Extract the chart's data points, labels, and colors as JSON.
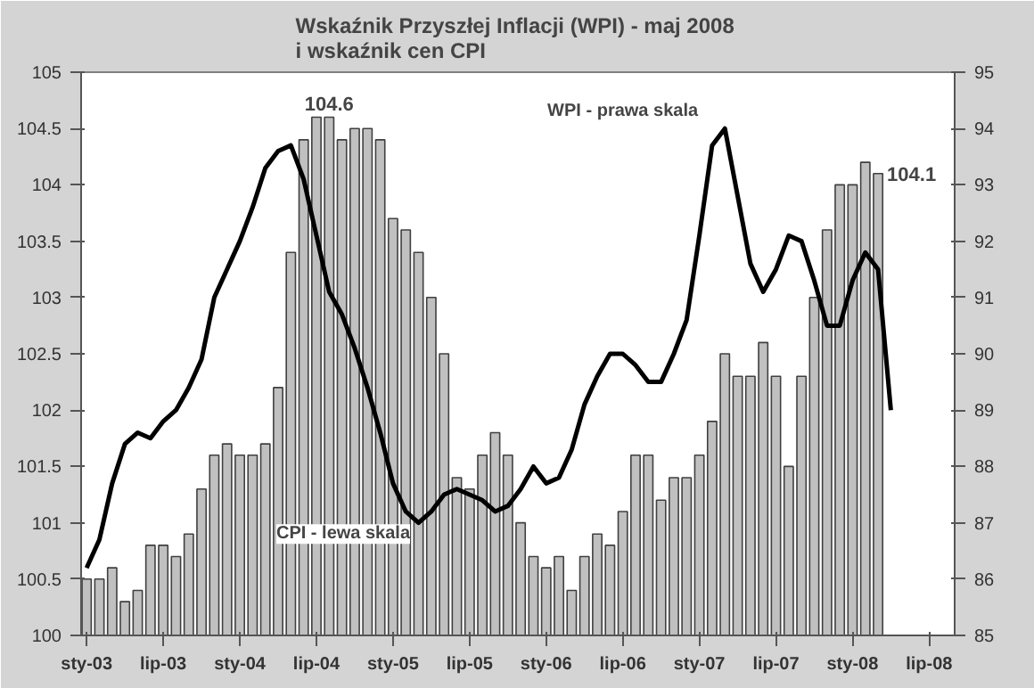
{
  "chart_data": {
    "type": "bar",
    "title": "Wskaźnik Przyszłej Inflacji (WPI) -  maj 2008\ni wskaźnik cen CPI",
    "xlim": [
      "2002-12-18",
      "2008-09-01"
    ],
    "xticks": [
      {
        "value": "2003-01",
        "label": "sty-03"
      },
      {
        "value": "2003-07",
        "label": "lip-03"
      },
      {
        "value": "2004-01",
        "label": "sty-04"
      },
      {
        "value": "2004-07",
        "label": "lip-04"
      },
      {
        "value": "2005-01",
        "label": "sty-05"
      },
      {
        "value": "2005-07",
        "label": "lip-05"
      },
      {
        "value": "2006-01",
        "label": "sty-06"
      },
      {
        "value": "2006-07",
        "label": "lip-06"
      },
      {
        "value": "2007-01",
        "label": "sty-07"
      },
      {
        "value": "2007-07",
        "label": "lip-07"
      },
      {
        "value": "2008-01",
        "label": "sty-08"
      },
      {
        "value": "2008-07",
        "label": "lip-08"
      }
    ],
    "ylim": [
      100,
      105
    ],
    "yticks": [
      100,
      100.5,
      101,
      101.5,
      102,
      102.5,
      103,
      103.5,
      104,
      104.5,
      105
    ],
    "y2lim": [
      85,
      95
    ],
    "y2ticks": [
      85,
      86,
      87,
      88,
      89,
      90,
      91,
      92,
      93,
      94,
      95
    ],
    "grid": false,
    "series": [
      {
        "name": "CPI - lewa skala",
        "color": "#c0c0c0",
        "x": [
          "2003-01",
          "2003-02",
          "2003-03",
          "2003-04",
          "2003-05",
          "2003-06",
          "2003-07",
          "2003-08",
          "2003-09",
          "2003-10",
          "2003-11",
          "2003-12",
          "2004-01",
          "2004-02",
          "2004-03",
          "2004-04",
          "2004-05",
          "2004-06",
          "2004-07",
          "2004-08",
          "2004-09",
          "2004-10",
          "2004-11",
          "2004-12",
          "2005-01",
          "2005-02",
          "2005-03",
          "2005-04",
          "2005-05",
          "2005-06",
          "2005-07",
          "2005-08",
          "2005-09",
          "2005-10",
          "2005-11",
          "2005-12",
          "2006-01",
          "2006-02",
          "2006-03",
          "2006-04",
          "2006-05",
          "2006-06",
          "2006-07",
          "2006-08",
          "2006-09",
          "2006-10",
          "2006-11",
          "2006-12",
          "2007-01",
          "2007-02",
          "2007-03",
          "2007-04",
          "2007-05",
          "2007-06",
          "2007-07",
          "2007-08",
          "2007-09",
          "2007-10",
          "2007-11",
          "2007-12",
          "2008-01",
          "2008-02",
          "2008-03"
        ],
        "values": [
          100.5,
          100.5,
          100.6,
          100.3,
          100.4,
          100.8,
          100.8,
          100.7,
          100.9,
          101.3,
          101.6,
          101.7,
          101.6,
          101.6,
          101.7,
          102.2,
          103.4,
          104.4,
          104.6,
          104.6,
          104.4,
          104.5,
          104.5,
          104.4,
          103.7,
          103.6,
          103.4,
          103.0,
          102.5,
          101.4,
          101.3,
          101.6,
          101.8,
          101.6,
          101.0,
          100.7,
          100.6,
          100.7,
          100.4,
          100.7,
          100.9,
          100.8,
          101.1,
          101.6,
          101.6,
          101.2,
          101.4,
          101.4,
          101.6,
          101.9,
          102.5,
          102.3,
          102.3,
          102.6,
          102.3,
          101.5,
          102.3,
          103.0,
          103.6,
          104.0,
          104.0,
          104.2,
          104.1
        ]
      },
      {
        "name": "WPI - prawa skala",
        "type": "line",
        "axis": "y2",
        "color": "#000000",
        "x": [
          "2003-01",
          "2003-02",
          "2003-03",
          "2003-04",
          "2003-05",
          "2003-06",
          "2003-07",
          "2003-08",
          "2003-09",
          "2003-10",
          "2003-11",
          "2003-12",
          "2004-01",
          "2004-02",
          "2004-03",
          "2004-04",
          "2004-05",
          "2004-06",
          "2004-07",
          "2004-08",
          "2004-09",
          "2004-10",
          "2004-11",
          "2004-12",
          "2005-01",
          "2005-02",
          "2005-03",
          "2005-04",
          "2005-05",
          "2005-06",
          "2005-07",
          "2005-08",
          "2005-09",
          "2005-10",
          "2005-11",
          "2005-12",
          "2006-01",
          "2006-02",
          "2006-03",
          "2006-04",
          "2006-05",
          "2006-06",
          "2006-07",
          "2006-08",
          "2006-09",
          "2006-10",
          "2006-11",
          "2006-12",
          "2007-01",
          "2007-02",
          "2007-03",
          "2007-04",
          "2007-05",
          "2007-06",
          "2007-07",
          "2007-08",
          "2007-09",
          "2007-10",
          "2007-11",
          "2007-12",
          "2008-01",
          "2008-02",
          "2008-03",
          "2008-04"
        ],
        "values": [
          86.2,
          86.7,
          87.7,
          88.4,
          88.6,
          88.5,
          88.8,
          89.0,
          89.4,
          89.9,
          91.0,
          91.5,
          92.0,
          92.6,
          93.3,
          93.6,
          93.7,
          93.1,
          92.1,
          91.1,
          90.7,
          90.1,
          89.4,
          88.6,
          87.7,
          87.2,
          87.0,
          87.2,
          87.5,
          87.6,
          87.5,
          87.4,
          87.2,
          87.3,
          87.6,
          88.0,
          87.7,
          87.8,
          88.3,
          89.1,
          89.6,
          90.0,
          90.0,
          89.8,
          89.5,
          89.5,
          90.0,
          90.6,
          92.1,
          93.7,
          94.0,
          92.8,
          91.6,
          91.1,
          91.5,
          92.1,
          92.0,
          91.3,
          90.5,
          90.5,
          91.3,
          91.8,
          91.5,
          89.0
        ]
      }
    ],
    "annotations": [
      {
        "text": "104.6",
        "x": "2004-08",
        "y": 104.6
      },
      {
        "text": "104.1",
        "x": "2008-03",
        "y": 104.1
      }
    ]
  }
}
